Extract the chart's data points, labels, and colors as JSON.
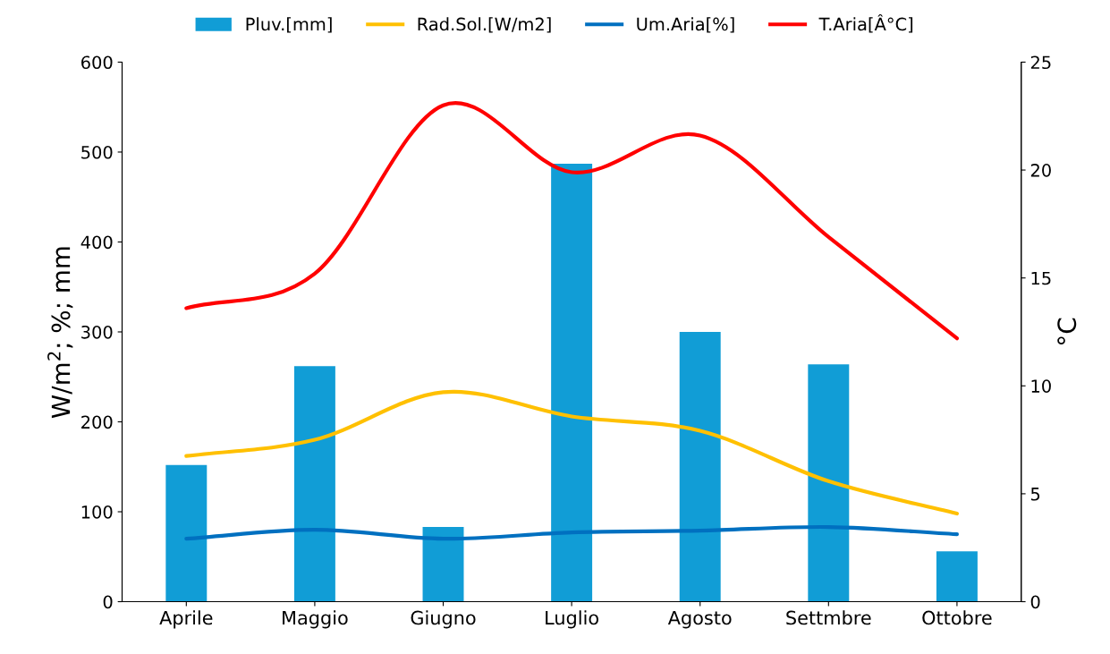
{
  "chart_data": {
    "type": "bar",
    "categories": [
      "Aprile",
      "Maggio",
      "Giugno",
      "Luglio",
      "Agosto",
      "Settmbre",
      "Ottobre"
    ],
    "ylabel": "W/m$^{2}$; %; mm",
    "y2label": "°C",
    "ylim": [
      0,
      600
    ],
    "yticks": [
      0,
      100,
      200,
      300,
      400,
      500,
      600
    ],
    "y2lim": [
      0,
      25
    ],
    "y2ticks": [
      0,
      5,
      10,
      15,
      20,
      25
    ],
    "grid": false,
    "legend": "top",
    "series": [
      {
        "name": "Pluv.[mm]",
        "color": "#119dd6",
        "values": [
          152,
          262,
          83,
          487,
          300,
          264,
          56
        ]
      },
      {
        "name": "Rad.Sol.[W/m2]",
        "type": "line",
        "color": "#ffc000",
        "values": [
          162,
          180,
          233,
          206,
          190,
          134,
          98
        ]
      },
      {
        "name": "Um.Aria[%]",
        "type": "line",
        "color": "#0070c0",
        "values": [
          70,
          80,
          70,
          77,
          79,
          83,
          75
        ]
      },
      {
        "name": "T.Aria[Â°C]",
        "type": "line",
        "axis": "y2",
        "color": "#ff0000",
        "values": [
          13.6,
          15.2,
          23.0,
          19.9,
          21.6,
          16.9,
          12.2
        ]
      }
    ]
  }
}
